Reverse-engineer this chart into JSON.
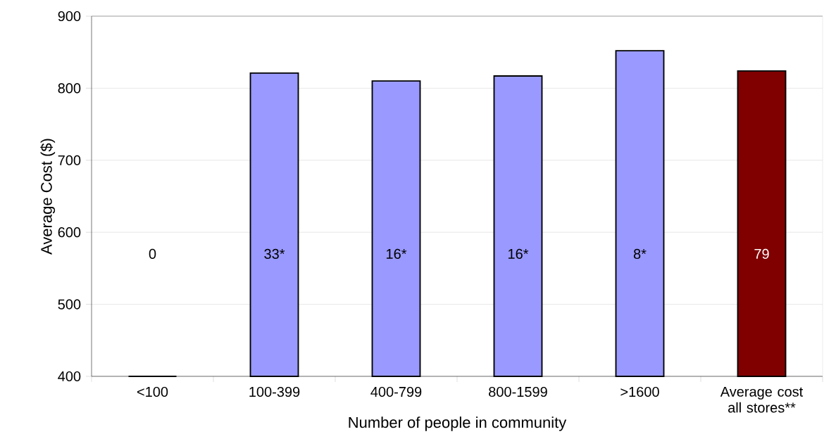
{
  "chart_data": {
    "type": "bar",
    "xlabel": "Number of people in community",
    "ylabel": "Average Cost ($)",
    "categories": [
      "<100",
      "100-399",
      "400-799",
      "800-1599",
      ">1600",
      "Average cost all stores**"
    ],
    "values": [
      400,
      821,
      810,
      817,
      852,
      824
    ],
    "colors": [
      "#9999ff",
      "#9999ff",
      "#9999ff",
      "#9999ff",
      "#9999ff",
      "#800000"
    ],
    "annotations": [
      "0",
      "33*",
      "16*",
      "16*",
      "8*",
      "79"
    ],
    "ylim": [
      400,
      900
    ],
    "yticks": [
      400,
      500,
      600,
      700,
      800,
      900
    ],
    "grid": "y"
  }
}
